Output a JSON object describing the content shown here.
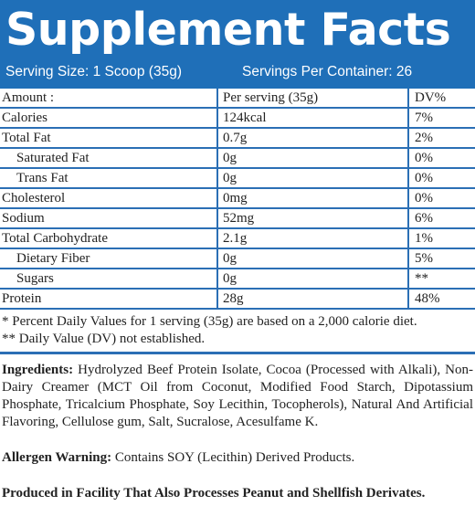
{
  "header": {
    "title": "Supplement Facts",
    "serving_size": "Serving Size: 1 Scoop (35g)",
    "servings_per_container": "Servings Per Container: 26",
    "background_color": "#1f6fb8"
  },
  "table": {
    "columns": [
      "Amount :",
      "Per serving (35g)",
      "DV%"
    ],
    "rows": [
      {
        "name": "Calories",
        "amount": "124kcal",
        "dv": "7%",
        "indent": false
      },
      {
        "name": "Total Fat",
        "amount": "0.7g",
        "dv": "2%",
        "indent": false
      },
      {
        "name": "Saturated Fat",
        "amount": "0g",
        "dv": "0%",
        "indent": true
      },
      {
        "name": "Trans Fat",
        "amount": "0g",
        "dv": "0%",
        "indent": true
      },
      {
        "name": "Cholesterol",
        "amount": "0mg",
        "dv": "0%",
        "indent": false
      },
      {
        "name": "Sodium",
        "amount": "52mg",
        "dv": "6%",
        "indent": false
      },
      {
        "name": "Total Carbohydrate",
        "amount": "2.1g",
        "dv": "1%",
        "indent": false
      },
      {
        "name": "Dietary Fiber",
        "amount": "0g",
        "dv": "5%",
        "indent": true
      },
      {
        "name": "Sugars",
        "amount": "0g",
        "dv": "**",
        "indent": true
      },
      {
        "name": "Protein",
        "amount": "28g",
        "dv": "48%",
        "indent": false
      }
    ],
    "border_color": "#2b6fb5"
  },
  "notes": {
    "line1": "* Percent Daily Values for 1 serving (35g) are based on a 2,000 calorie diet.",
    "line2": "** Daily Value (DV) not established."
  },
  "ingredients": {
    "label": "Ingredients:",
    "text": " Hydrolyzed Beef Protein Isolate, Cocoa (Processed with Alkali), Non-Dairy Creamer (MCT Oil from Coconut, Modified Food Starch, Dipotassium Phosphate, Tricalcium Phosphate, Soy Lecithin, Tocopherols), Natural And Artificial Flavoring, Cellulose gum, Salt, Sucralose, Acesulfame K."
  },
  "allergen": {
    "label": "Allergen Warning:",
    "text": " Contains SOY (Lecithin) Derived Products."
  },
  "facility": {
    "text": "Produced in Facility That Also Processes Peanut and Shellfish Derivates."
  }
}
